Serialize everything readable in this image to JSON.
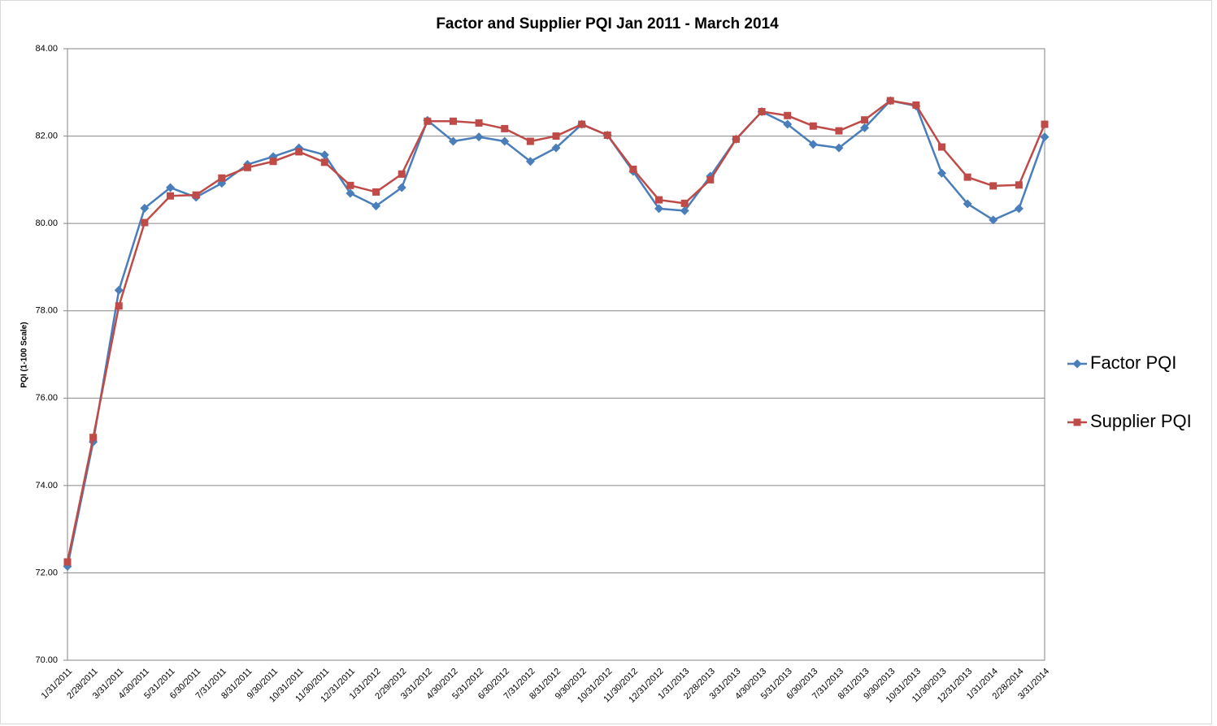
{
  "chart_data": {
    "type": "line",
    "title": "Factor and Supplier PQI Jan 2011 - March 2014",
    "y_label": "PQI (1-100 Scale)",
    "categories": [
      "1/31/2011",
      "2/28/2011",
      "3/31/2011",
      "4/30/2011",
      "5/31/2011",
      "6/30/2011",
      "7/31/2011",
      "8/31/2011",
      "9/30/2011",
      "10/31/2011",
      "11/30/2011",
      "12/31/2011",
      "1/31/2012",
      "2/29/2012",
      "3/31/2012",
      "4/30/2012",
      "5/31/2012",
      "6/30/2012",
      "7/31/2012",
      "8/31/2012",
      "9/30/2012",
      "10/31/2012",
      "11/30/2012",
      "12/31/2012",
      "1/31/2013",
      "2/28/2013",
      "3/31/2013",
      "4/30/2013",
      "5/31/2013",
      "6/30/2013",
      "7/31/2013",
      "8/31/2013",
      "9/30/2013",
      "10/31/2013",
      "11/30/2013",
      "12/31/2013",
      "1/31/2014",
      "2/28/2014",
      "3/31/2014"
    ],
    "series": [
      {
        "name": "Factor PQI",
        "color": "#4a7ebb",
        "marker": "diamond",
        "values": [
          72.15,
          75.0,
          78.47,
          80.35,
          80.82,
          80.6,
          80.92,
          81.35,
          81.53,
          81.73,
          81.57,
          80.69,
          80.4,
          80.82,
          82.36,
          81.88,
          81.98,
          81.88,
          81.42,
          81.73,
          82.27,
          82.02,
          81.19,
          80.34,
          80.29,
          81.08,
          81.93,
          82.56,
          82.27,
          81.81,
          81.73,
          82.19,
          82.81,
          82.69,
          81.15,
          80.45,
          80.08,
          80.34,
          81.98
        ]
      },
      {
        "name": "Supplier PQI",
        "color": "#be4b48",
        "marker": "square",
        "values": [
          72.25,
          75.1,
          78.11,
          80.02,
          80.63,
          80.65,
          81.04,
          81.28,
          81.42,
          81.64,
          81.4,
          80.87,
          80.72,
          81.13,
          82.34,
          82.34,
          82.3,
          82.17,
          81.88,
          82.0,
          82.27,
          82.02,
          81.24,
          80.54,
          80.46,
          81.0,
          81.93,
          82.56,
          82.47,
          82.23,
          82.12,
          82.37,
          82.81,
          82.71,
          81.75,
          81.06,
          80.86,
          80.88,
          82.27
        ]
      }
    ],
    "ylim": [
      70,
      84
    ],
    "yticks": [
      {
        "value": 70,
        "label": "70.00"
      },
      {
        "value": 72,
        "label": "72.00"
      },
      {
        "value": 74,
        "label": "74.00"
      },
      {
        "value": 76,
        "label": "76.00"
      },
      {
        "value": 78,
        "label": "78.00"
      },
      {
        "value": 80,
        "label": "80.00"
      },
      {
        "value": 82,
        "label": "82.00"
      },
      {
        "value": 84,
        "label": "84.00"
      }
    ],
    "grid": true,
    "legend": "right"
  }
}
